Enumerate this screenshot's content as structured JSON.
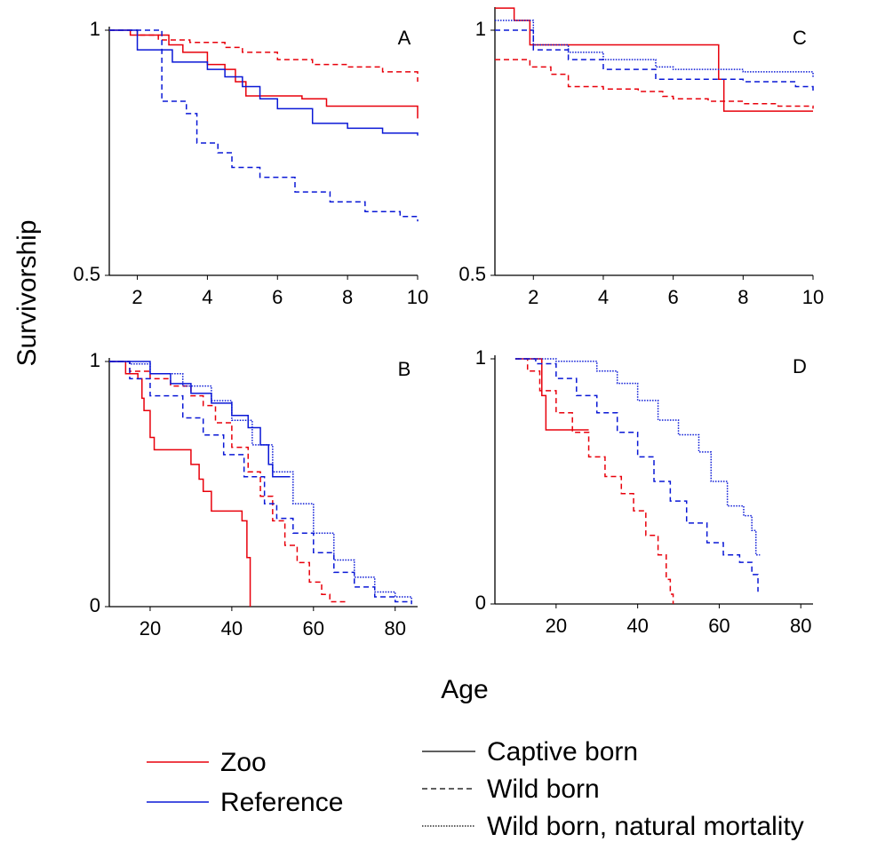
{
  "y_label": "Survivorship",
  "x_label": "Age",
  "legend": {
    "groups": [
      {
        "label": "Zoo",
        "color": "#e8000b"
      },
      {
        "label": "Reference",
        "color": "#0a18d6"
      }
    ],
    "styles": [
      {
        "label": "Captive born",
        "dash": "solid"
      },
      {
        "label": "Wild born",
        "dash": "dashed"
      },
      {
        "label": "Wild born, natural mortality",
        "dash": "dotted"
      }
    ]
  },
  "chart_data": [
    {
      "type": "step",
      "panel": "A",
      "xlim": [
        1.2,
        10
      ],
      "ylim": [
        0.5,
        1
      ],
      "xticks": [
        2,
        4,
        6,
        8,
        10
      ],
      "yticks": [
        0.5,
        1
      ],
      "series": [
        {
          "color": "#e8000b",
          "dash": "solid",
          "x": [
            1.2,
            1.8,
            2.9,
            3.3,
            4.0,
            4.5,
            4.8,
            5.1,
            6.7,
            7.4,
            10
          ],
          "values": [
            1,
            0.99,
            0.97,
            0.955,
            0.93,
            0.92,
            0.895,
            0.866,
            0.86,
            0.845,
            0.82
          ]
        },
        {
          "color": "#e8000b",
          "dash": "dashed",
          "x": [
            1.2,
            2,
            2.6,
            3.5,
            4.5,
            5,
            6,
            7,
            8,
            9,
            10
          ],
          "values": [
            1,
            0.99,
            0.98,
            0.975,
            0.965,
            0.955,
            0.94,
            0.93,
            0.925,
            0.915,
            0.895
          ]
        },
        {
          "color": "#0a18d6",
          "dash": "solid",
          "x": [
            1.2,
            2,
            3,
            4,
            4.5,
            5,
            5.5,
            6,
            7,
            8,
            9,
            10
          ],
          "values": [
            1,
            0.96,
            0.935,
            0.92,
            0.905,
            0.885,
            0.86,
            0.84,
            0.81,
            0.8,
            0.79,
            0.785
          ]
        },
        {
          "color": "#0a18d6",
          "dash": "dashed",
          "x": [
            1.2,
            2.7,
            3.4,
            3.7,
            4.3,
            4.7,
            5.5,
            6.5,
            7.5,
            8.5,
            9.5,
            10
          ],
          "values": [
            1,
            0.855,
            0.83,
            0.77,
            0.75,
            0.72,
            0.7,
            0.67,
            0.65,
            0.63,
            0.62,
            0.61
          ]
        }
      ]
    },
    {
      "type": "step",
      "panel": "C",
      "xlim": [
        0.9,
        10
      ],
      "ylim": [
        0.5,
        1.05
      ],
      "xticks": [
        2,
        4,
        6,
        8,
        10
      ],
      "yticks": [
        0.5,
        1
      ],
      "series": [
        {
          "color": "#e8000b",
          "dash": "solid",
          "x": [
            0.9,
            1.45,
            1.9,
            7.3,
            7.45,
            10
          ],
          "values": [
            1.045,
            1.02,
            0.97,
            0.9,
            0.835,
            0.835
          ]
        },
        {
          "color": "#e8000b",
          "dash": "dashed",
          "x": [
            0.9,
            1.9,
            2.5,
            3,
            4,
            5,
            5.7,
            6,
            7,
            8,
            9,
            10
          ],
          "values": [
            0.94,
            0.925,
            0.91,
            0.885,
            0.88,
            0.875,
            0.865,
            0.86,
            0.855,
            0.85,
            0.845,
            0.84
          ]
        },
        {
          "color": "#0a18d6",
          "dash": "dashed",
          "x": [
            0.9,
            2,
            3,
            4,
            5.5,
            8,
            9.5,
            10
          ],
          "values": [
            1,
            0.96,
            0.94,
            0.92,
            0.9,
            0.895,
            0.885,
            0.875
          ]
        },
        {
          "color": "#0a18d6",
          "dash": "dotted",
          "x": [
            0.9,
            2,
            3,
            4,
            5.5,
            6,
            8,
            10
          ],
          "values": [
            1.02,
            0.97,
            0.955,
            0.94,
            0.925,
            0.92,
            0.915,
            0.905
          ]
        }
      ]
    },
    {
      "type": "step",
      "panel": "B",
      "xlim": [
        10,
        85.5
      ],
      "ylim": [
        0,
        1
      ],
      "xticks": [
        20,
        40,
        60,
        80
      ],
      "yticks": [
        0,
        1
      ],
      "series": [
        {
          "color": "#e8000b",
          "dash": "solid",
          "x": [
            10,
            14,
            17,
            18,
            18.5,
            20,
            21,
            30,
            32,
            33,
            35,
            42.5,
            43.7,
            44.5
          ],
          "values": [
            1,
            0.95,
            0.93,
            0.85,
            0.8,
            0.69,
            0.64,
            0.58,
            0.52,
            0.47,
            0.39,
            0.35,
            0.2,
            0
          ]
        },
        {
          "color": "#e8000b",
          "dash": "dashed",
          "x": [
            10,
            15,
            20,
            25,
            30,
            33,
            36,
            40,
            44,
            47,
            50,
            53,
            56,
            59,
            62,
            64,
            68
          ],
          "values": [
            1,
            0.96,
            0.93,
            0.9,
            0.86,
            0.82,
            0.75,
            0.65,
            0.55,
            0.45,
            0.35,
            0.25,
            0.18,
            0.1,
            0.05,
            0.02,
            0.02
          ]
        },
        {
          "color": "#0a18d6",
          "dash": "solid",
          "x": [
            10,
            20,
            25,
            30,
            35,
            40,
            44,
            47,
            49,
            50,
            54.3
          ],
          "values": [
            1,
            0.95,
            0.91,
            0.87,
            0.83,
            0.78,
            0.73,
            0.66,
            0.58,
            0.53,
            0.53
          ]
        },
        {
          "color": "#0a18d6",
          "dash": "dashed",
          "x": [
            10,
            15,
            20,
            28,
            33,
            38,
            43,
            48,
            51,
            55,
            60,
            65,
            70,
            75,
            80,
            84
          ],
          "values": [
            1,
            0.93,
            0.86,
            0.77,
            0.7,
            0.62,
            0.53,
            0.42,
            0.36,
            0.3,
            0.22,
            0.14,
            0.08,
            0.04,
            0.02,
            0.01
          ]
        },
        {
          "color": "#0a18d6",
          "dash": "dotted",
          "x": [
            10,
            15,
            20,
            28,
            35,
            40,
            45,
            50,
            55,
            60,
            65,
            70,
            75,
            80,
            84
          ],
          "values": [
            1,
            0.99,
            0.95,
            0.9,
            0.84,
            0.76,
            0.66,
            0.55,
            0.42,
            0.3,
            0.19,
            0.12,
            0.06,
            0.04,
            0.02
          ]
        }
      ]
    },
    {
      "type": "step",
      "panel": "D",
      "xlim": [
        5,
        83
      ],
      "ylim": [
        0,
        1
      ],
      "xticks": [
        20,
        40,
        60,
        80
      ],
      "yticks": [
        0,
        1
      ],
      "series": [
        {
          "color": "#e8000b",
          "dash": "solid",
          "x": [
            10,
            16.5,
            17.5,
            28
          ],
          "values": [
            1,
            0.85,
            0.71,
            0.71
          ]
        },
        {
          "color": "#e8000b",
          "dash": "dashed",
          "x": [
            10,
            13,
            16,
            20,
            24,
            28,
            32,
            36,
            39,
            42,
            45,
            47,
            48,
            48.7
          ],
          "values": [
            1,
            0.95,
            0.87,
            0.78,
            0.7,
            0.6,
            0.52,
            0.45,
            0.38,
            0.28,
            0.2,
            0.1,
            0.04,
            0
          ]
        },
        {
          "color": "#0a18d6",
          "dash": "dashed",
          "x": [
            10,
            15,
            20,
            25,
            30,
            35,
            40,
            44,
            48,
            52,
            57,
            61,
            65,
            68,
            69.5
          ],
          "values": [
            1,
            0.98,
            0.92,
            0.85,
            0.78,
            0.7,
            0.6,
            0.5,
            0.42,
            0.33,
            0.25,
            0.2,
            0.17,
            0.12,
            0.05
          ]
        },
        {
          "color": "#0a18d6",
          "dash": "dotted",
          "x": [
            10,
            20,
            30,
            35,
            40,
            45,
            50,
            55,
            58,
            62,
            66,
            68,
            69,
            70
          ],
          "values": [
            1,
            0.99,
            0.95,
            0.9,
            0.83,
            0.75,
            0.69,
            0.62,
            0.5,
            0.4,
            0.36,
            0.3,
            0.2,
            0.2
          ]
        }
      ]
    }
  ]
}
